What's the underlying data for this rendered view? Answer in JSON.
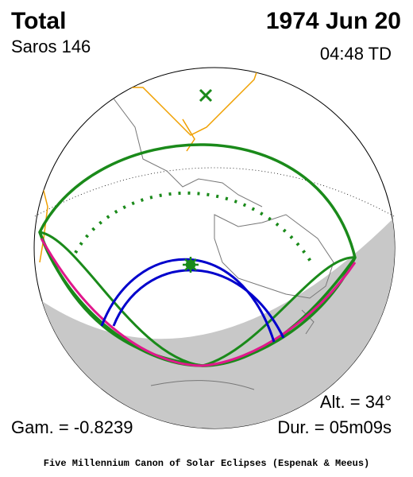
{
  "header": {
    "type": "Total",
    "date": "1974 Jun 20",
    "saros": "Saros 146",
    "time": "04:48 TD"
  },
  "stats": {
    "altitude": "Alt. = 34°",
    "gamma": "Gam. = -0.8239",
    "duration": "Dur. = 05m09s"
  },
  "footer": {
    "credit": "Five Millennium Canon of Solar Eclipses (Espenak & Meeus)"
  }
}
